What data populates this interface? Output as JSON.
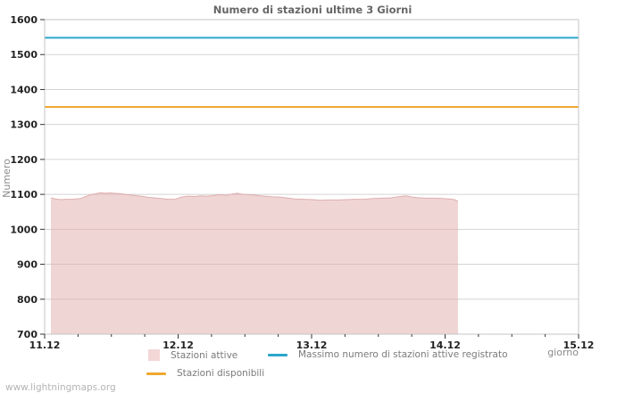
{
  "watermark": "www.lightningmaps.org",
  "chart_data": {
    "type": "area",
    "title": "Numero di stazioni ultime 3 Giorni",
    "xlabel": "giorno",
    "ylabel": "Numero",
    "ylim": [
      700,
      1600
    ],
    "ytick_step": 100,
    "yticks": [
      700,
      800,
      900,
      1000,
      1100,
      1200,
      1300,
      1400,
      1500,
      1600
    ],
    "xlim_days": [
      0,
      4
    ],
    "minor_tick_step_days": 0.25,
    "xticks": [
      {
        "day": 0,
        "label": "11.12"
      },
      {
        "day": 1,
        "label": "12.12"
      },
      {
        "day": 2,
        "label": "13.12"
      },
      {
        "day": 3,
        "label": "14.12"
      },
      {
        "day": 4,
        "label": "15.12"
      }
    ],
    "grid": true,
    "legend_position": "bottom",
    "colors": {
      "grid": "#d4d4d4",
      "border": "#c6c6c6",
      "tick": "#333333",
      "tick_label": "#222222",
      "axis_text": "#8a8a8a"
    },
    "series": [
      {
        "name": "Stazioni attive",
        "type": "area",
        "fill": "rgba(226,172,172,0.5)",
        "stroke": "#E0AEAE",
        "swatch": "#F3D7D7",
        "points": [
          [
            0.047,
            1090
          ],
          [
            0.08,
            1087
          ],
          [
            0.12,
            1085
          ],
          [
            0.167,
            1086
          ],
          [
            0.214,
            1086
          ],
          [
            0.268,
            1088
          ],
          [
            0.314,
            1095
          ],
          [
            0.355,
            1100
          ],
          [
            0.388,
            1102
          ],
          [
            0.421,
            1105
          ],
          [
            0.455,
            1103
          ],
          [
            0.488,
            1104
          ],
          [
            0.522,
            1103
          ],
          [
            0.555,
            1102
          ],
          [
            0.589,
            1101
          ],
          [
            0.622,
            1099
          ],
          [
            0.669,
            1097
          ],
          [
            0.722,
            1095
          ],
          [
            0.769,
            1092
          ],
          [
            0.816,
            1090
          ],
          [
            0.87,
            1088
          ],
          [
            0.923,
            1086
          ],
          [
            0.977,
            1086
          ],
          [
            1.023,
            1092
          ],
          [
            1.07,
            1095
          ],
          [
            1.124,
            1094
          ],
          [
            1.171,
            1096
          ],
          [
            1.217,
            1095
          ],
          [
            1.271,
            1097
          ],
          [
            1.318,
            1099
          ],
          [
            1.358,
            1097
          ],
          [
            1.405,
            1101
          ],
          [
            1.445,
            1103
          ],
          [
            1.485,
            1100
          ],
          [
            1.538,
            1099
          ],
          [
            1.592,
            1097
          ],
          [
            1.645,
            1095
          ],
          [
            1.706,
            1093
          ],
          [
            1.773,
            1092
          ],
          [
            1.826,
            1089
          ],
          [
            1.873,
            1087
          ],
          [
            1.94,
            1086
          ],
          [
            2.007,
            1085
          ],
          [
            2.06,
            1083
          ],
          [
            2.127,
            1084
          ],
          [
            2.194,
            1084
          ],
          [
            2.261,
            1085
          ],
          [
            2.328,
            1086
          ],
          [
            2.395,
            1086
          ],
          [
            2.462,
            1088
          ],
          [
            2.528,
            1089
          ],
          [
            2.595,
            1090
          ],
          [
            2.662,
            1094
          ],
          [
            2.709,
            1096
          ],
          [
            2.756,
            1092
          ],
          [
            2.809,
            1090
          ],
          [
            2.863,
            1089
          ],
          [
            2.923,
            1089
          ],
          [
            2.977,
            1088
          ],
          [
            3.03,
            1087
          ],
          [
            3.07,
            1085
          ],
          [
            3.097,
            1080
          ]
        ]
      },
      {
        "name": "Stazioni disponibili",
        "type": "hline",
        "value": 1350,
        "color": "#F0A830",
        "swatch": "#F0A830"
      },
      {
        "name": "Massimo numero di stazioni attive registrato",
        "type": "hline",
        "value": 1548,
        "color": "#2BA6CB",
        "swatch": "#2BA6CB"
      }
    ]
  }
}
